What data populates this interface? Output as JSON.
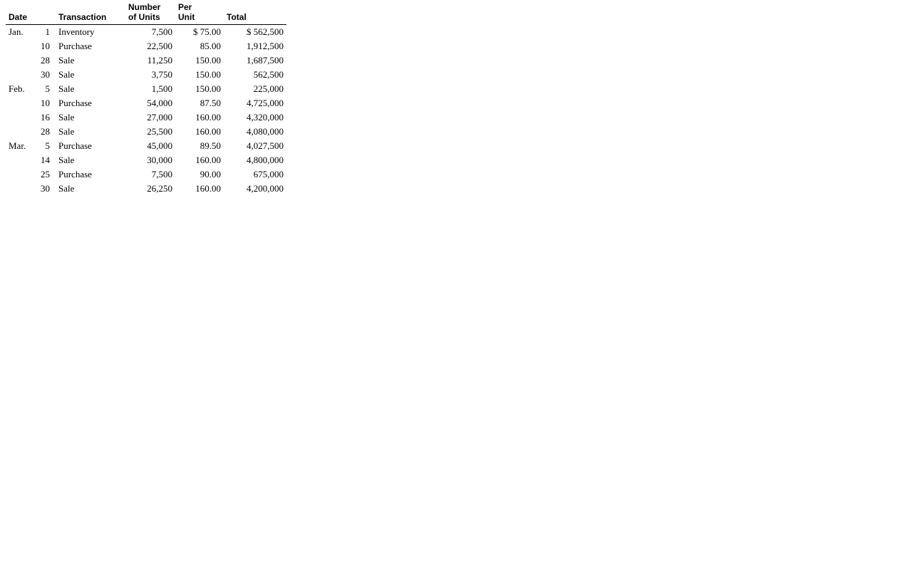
{
  "table": {
    "columns": {
      "date": "Date",
      "transaction": "Transaction",
      "units_l1": "Number",
      "units_l2": "of Units",
      "unit_l1": "Per",
      "unit_l2": "Unit",
      "total": "Total"
    },
    "rows": [
      {
        "month": "Jan.",
        "day": "1",
        "txn": "Inventory",
        "units": "7,500",
        "unit_prefix": "$ ",
        "unit": "75.00",
        "total_prefix": "$  ",
        "total": "562,500"
      },
      {
        "month": "",
        "day": "10",
        "txn": "Purchase",
        "units": "22,500",
        "unit_prefix": "",
        "unit": "85.00",
        "total_prefix": "",
        "total": "1,912,500"
      },
      {
        "month": "",
        "day": "28",
        "txn": "Sale",
        "units": "11,250",
        "unit_prefix": "",
        "unit": "150.00",
        "total_prefix": "",
        "total": "1,687,500"
      },
      {
        "month": "",
        "day": "30",
        "txn": "Sale",
        "units": "3,750",
        "unit_prefix": "",
        "unit": "150.00",
        "total_prefix": "",
        "total": "562,500"
      },
      {
        "month": "Feb.",
        "day": "5",
        "txn": "Sale",
        "units": "1,500",
        "unit_prefix": "",
        "unit": "150.00",
        "total_prefix": "",
        "total": "225,000"
      },
      {
        "month": "",
        "day": "10",
        "txn": "Purchase",
        "units": "54,000",
        "unit_prefix": "",
        "unit": "87.50",
        "total_prefix": "",
        "total": "4,725,000"
      },
      {
        "month": "",
        "day": "16",
        "txn": "Sale",
        "units": "27,000",
        "unit_prefix": "",
        "unit": "160.00",
        "total_prefix": "",
        "total": "4,320,000"
      },
      {
        "month": "",
        "day": "28",
        "txn": "Sale",
        "units": "25,500",
        "unit_prefix": "",
        "unit": "160.00",
        "total_prefix": "",
        "total": "4,080,000"
      },
      {
        "month": "Mar.",
        "day": "5",
        "txn": "Purchase",
        "units": "45,000",
        "unit_prefix": "",
        "unit": "89.50",
        "total_prefix": "",
        "total": "4,027,500"
      },
      {
        "month": "",
        "day": "14",
        "txn": "Sale",
        "units": "30,000",
        "unit_prefix": "",
        "unit": "160.00",
        "total_prefix": "",
        "total": "4,800,000"
      },
      {
        "month": "",
        "day": "25",
        "txn": "Purchase",
        "units": "7,500",
        "unit_prefix": "",
        "unit": "90.00",
        "total_prefix": "",
        "total": "675,000"
      },
      {
        "month": "",
        "day": "30",
        "txn": "Sale",
        "units": "26,250",
        "unit_prefix": "",
        "unit": "160.00",
        "total_prefix": "",
        "total": "4,200,000"
      }
    ],
    "styling": {
      "header_font_family": "Arial",
      "header_font_weight": "bold",
      "header_font_size_pt": 9,
      "body_font_family": "Georgia",
      "body_font_size_pt": 10,
      "border_color": "#000000",
      "background_color": "#ffffff",
      "text_color": "#000000",
      "column_alignment": [
        "left",
        "right",
        "left",
        "right",
        "right",
        "right"
      ]
    }
  }
}
